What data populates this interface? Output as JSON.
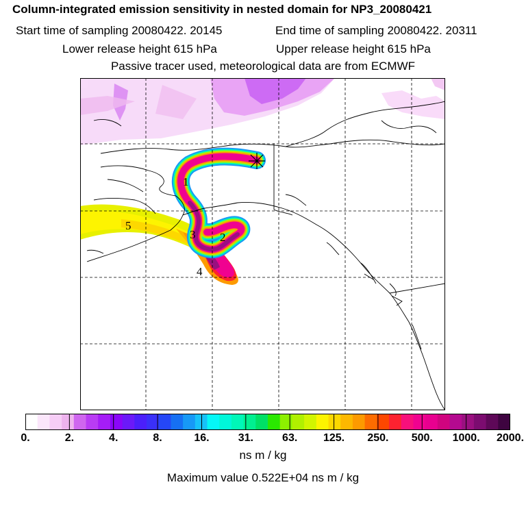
{
  "header": {
    "title": "Column-integrated emission sensitivity in nested domain for NP3_20080421",
    "start_label": "Start time of sampling 20080422. 20145",
    "end_label": "End time of sampling 20080422. 20311",
    "lower_label": "Lower release height  615 hPa",
    "upper_label": "Upper release height  615 hPa",
    "tracer_label": "Passive tracer used, meteorological data are from ECMWF"
  },
  "map": {
    "markers": [
      "1",
      "2",
      "3",
      "4",
      "5"
    ],
    "release_point": "release-star"
  },
  "colorbar": {
    "colors": [
      "#ffffff",
      "#fbe6fb",
      "#f6cdf6",
      "#eeb3ee",
      "#cf66ef",
      "#b93cf4",
      "#a51df7",
      "#8a06f9",
      "#6b19f9",
      "#4b1ffb",
      "#3a30f9",
      "#2547f7",
      "#1670f3",
      "#1799f6",
      "#17c2f9",
      "#05f7f7",
      "#00f7d9",
      "#00f7b8",
      "#00ef90",
      "#00e065",
      "#2ae800",
      "#8df000",
      "#b0f000",
      "#d2f500",
      "#fdf400",
      "#fdd800",
      "#fdb800",
      "#fd9a00",
      "#fd6c00",
      "#fd4700",
      "#fd2230",
      "#f7107b",
      "#f00290",
      "#e8008f",
      "#d0047f",
      "#b40a90",
      "#9a1080",
      "#7c0c70",
      "#5e0858",
      "#3e0440"
    ],
    "tick_labels": [
      "0.",
      "2.",
      "4.",
      "8.",
      "16.",
      "31.",
      "63.",
      "125.",
      "250.",
      "500.",
      "1000.",
      "2000."
    ],
    "units": "ns m / kg"
  },
  "footer": {
    "max_value": "Maximum value  0.522E+04 ns m / kg"
  }
}
